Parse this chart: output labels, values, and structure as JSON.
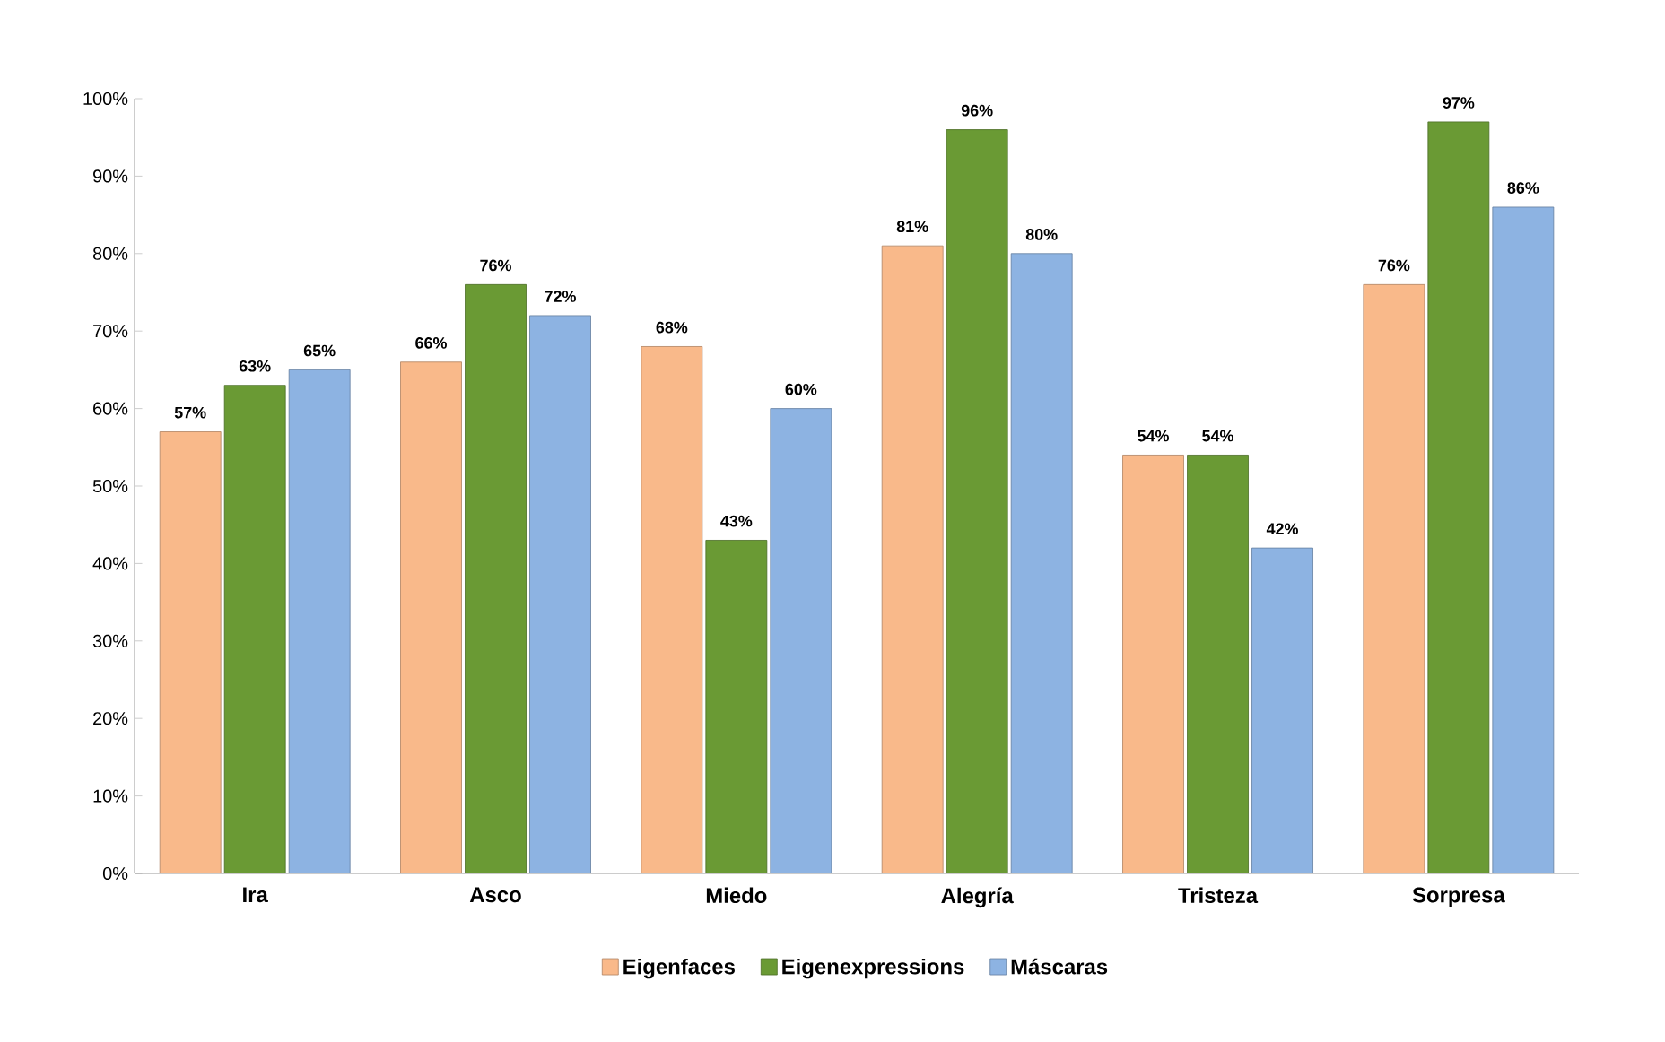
{
  "chart_data": {
    "type": "bar",
    "categories": [
      "Ira",
      "Asco",
      "Miedo",
      "Alegría",
      "Tristeza",
      "Sorpresa"
    ],
    "series": [
      {
        "name": "Eigenfaces",
        "color": "#f9b98a",
        "values": [
          57,
          66,
          68,
          81,
          54,
          76
        ],
        "value_labels": [
          "57%",
          "66%",
          "68%",
          "81%",
          "54%",
          "76%"
        ]
      },
      {
        "name": "Eigenexpressions",
        "color": "#6a9a34",
        "values": [
          63,
          76,
          43,
          96,
          54,
          97
        ],
        "value_labels": [
          "63%",
          "76%",
          "43%",
          "96%",
          "54%",
          "97%"
        ]
      },
      {
        "name": "Máscaras",
        "color": "#8db3e2",
        "values": [
          65,
          72,
          60,
          80,
          42,
          86
        ],
        "value_labels": [
          "65%",
          "72%",
          "60%",
          "80%",
          "42%",
          "86%"
        ]
      }
    ],
    "ylim": [
      0,
      100
    ],
    "yticks": [
      {
        "value": 0,
        "label": "0%"
      },
      {
        "value": 10,
        "label": "10%"
      },
      {
        "value": 20,
        "label": "20%"
      },
      {
        "value": 30,
        "label": "30%"
      },
      {
        "value": 40,
        "label": "40%"
      },
      {
        "value": 50,
        "label": "50%"
      },
      {
        "value": 60,
        "label": "60%"
      },
      {
        "value": 70,
        "label": "70%"
      },
      {
        "value": 80,
        "label": "80%"
      },
      {
        "value": 90,
        "label": "90%"
      },
      {
        "value": 100,
        "label": "100%"
      }
    ],
    "legend": "bottom"
  }
}
